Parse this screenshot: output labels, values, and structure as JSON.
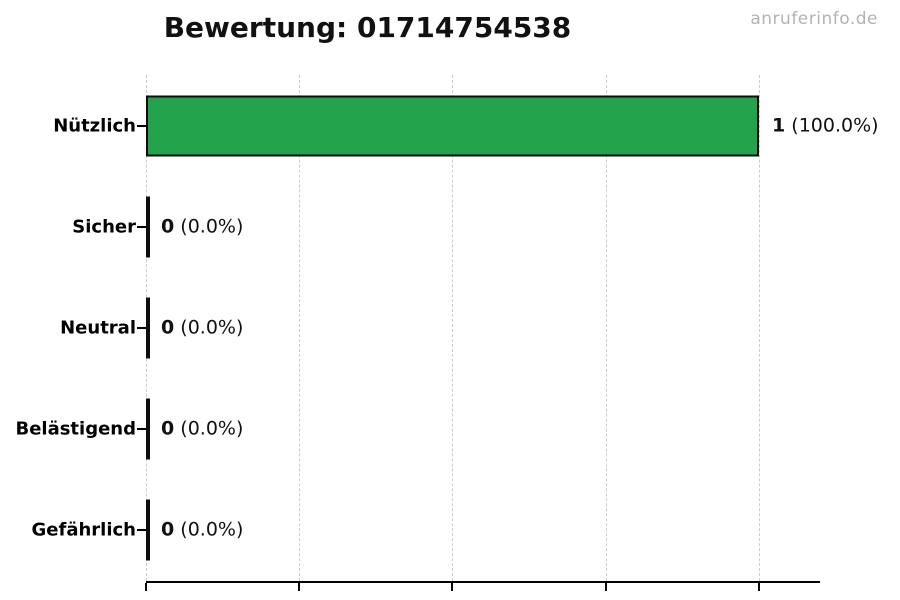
{
  "header": {
    "watermark": "anruferinfo.de"
  },
  "colors": {
    "bar_fill": "#22a34c",
    "bar_border": "#0d0d0d",
    "gridline": "#cccccc",
    "axis": "#000000",
    "watermark_gray": "#b3b3b3"
  },
  "chart_data": {
    "type": "bar",
    "orientation": "horizontal",
    "title": "Bewertung: 01714754538",
    "categories": [
      "Nützlich",
      "Sicher",
      "Neutral",
      "Belästigend",
      "Gefährlich"
    ],
    "values": [
      1,
      0,
      0,
      0,
      0
    ],
    "value_labels": [
      {
        "count": "1",
        "pct": "(100.0%)"
      },
      {
        "count": "0",
        "pct": "(0.0%)"
      },
      {
        "count": "0",
        "pct": "(0.0%)"
      },
      {
        "count": "0",
        "pct": "(0.0%)"
      },
      {
        "count": "0",
        "pct": "(0.0%)"
      }
    ],
    "xlabel": "",
    "ylabel": "",
    "xlim": [
      0,
      1.1
    ],
    "xticks": [
      0,
      0.25,
      0.5,
      0.75,
      1.0
    ],
    "xtick_labels_visible": false,
    "grid": "vertical-dashed",
    "legend": "none"
  }
}
